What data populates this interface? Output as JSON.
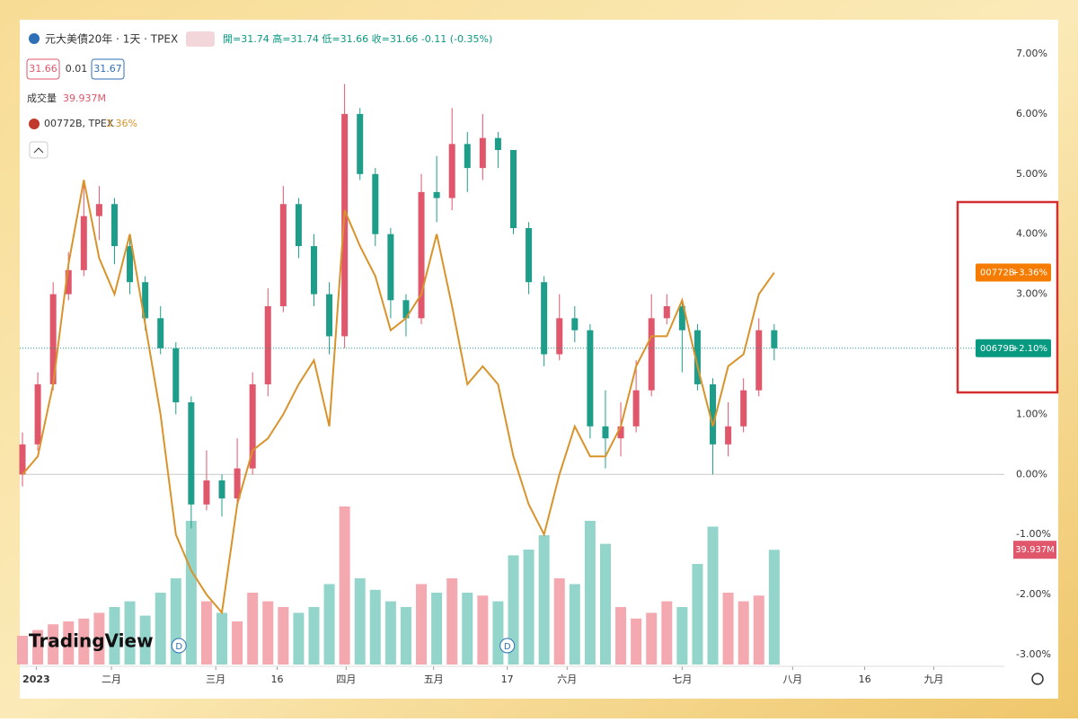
{
  "chart_data": {
    "type": "candlestick",
    "title": "元大美債20年 · 1天 · TPEX",
    "ohlc_text": "開=31.74 高=31.74 低=31.66 收=31.66 -0.11 (-0.35%)",
    "bid": "31.66",
    "spread": "0.01",
    "ask": "31.67",
    "volume_title": "成交量",
    "volume_label": "39.937M",
    "compare_name": "00772B, TPEX",
    "compare_value": "3.36%",
    "badges": [
      {
        "text": "D",
        "index": 10.2
      },
      {
        "text": "D",
        "index": 31.6
      }
    ],
    "logo": "TradingView",
    "label_line": {
      "name": "00772B",
      "value": "+3.36%",
      "color": "#f57c00"
    },
    "label_main": {
      "name": "00679B",
      "value": "+2.10%",
      "color": "#089981"
    },
    "up_color": "#e0566b",
    "down_color": "#1e9e8a",
    "up_volume_color": "#f4a9b0",
    "down_volume_color": "#94d5cb",
    "open": [
      0.0,
      0.5,
      1.5,
      3.0,
      3.4,
      4.3,
      4.5,
      3.8,
      3.2,
      2.6,
      2.1,
      1.2,
      -0.5,
      -0.1,
      -0.4,
      0.1,
      1.5,
      2.8,
      4.5,
      3.8,
      3.0,
      2.3,
      6.0,
      5.0,
      4.0,
      2.9,
      2.6,
      4.7,
      4.6,
      5.5,
      5.1,
      5.6,
      5.4,
      4.1,
      3.2,
      2.0,
      2.6,
      2.4,
      0.8,
      0.6,
      0.8,
      1.4,
      2.6,
      2.8,
      2.4,
      1.5,
      0.5,
      0.8,
      1.4,
      2.4
    ],
    "high": [
      0.7,
      1.7,
      3.2,
      3.7,
      4.9,
      4.8,
      4.6,
      4.0,
      3.3,
      2.8,
      2.2,
      1.3,
      0.4,
      0.0,
      0.6,
      1.7,
      3.1,
      4.8,
      4.6,
      4.0,
      3.2,
      6.5,
      6.1,
      5.1,
      4.1,
      3.0,
      5.0,
      5.3,
      6.1,
      5.7,
      6.0,
      5.7,
      5.4,
      4.2,
      3.3,
      3.0,
      2.8,
      2.5,
      1.4,
      1.2,
      1.9,
      3.0,
      3.0,
      2.9,
      2.5,
      1.6,
      1.2,
      1.6,
      2.6,
      2.5
    ],
    "low": [
      -0.2,
      0.4,
      1.4,
      2.9,
      3.3,
      3.9,
      3.5,
      3.0,
      2.4,
      2.0,
      1.0,
      -0.9,
      -0.6,
      -0.7,
      -0.5,
      0.0,
      1.3,
      2.7,
      3.6,
      2.8,
      2.0,
      2.1,
      4.9,
      3.8,
      2.6,
      2.3,
      2.5,
      4.2,
      4.4,
      4.7,
      4.9,
      5.1,
      4.0,
      3.0,
      1.8,
      1.9,
      2.2,
      0.6,
      0.1,
      0.3,
      0.7,
      1.3,
      2.5,
      1.7,
      1.4,
      0.0,
      0.3,
      0.7,
      1.3,
      1.9
    ],
    "close": [
      0.5,
      1.5,
      3.0,
      3.4,
      4.3,
      4.5,
      3.8,
      3.2,
      2.6,
      2.1,
      1.2,
      -0.5,
      -0.1,
      -0.4,
      0.1,
      1.5,
      2.8,
      4.5,
      3.8,
      3.0,
      2.3,
      6.0,
      5.0,
      4.0,
      2.9,
      2.6,
      4.7,
      4.6,
      5.5,
      5.1,
      5.6,
      5.4,
      4.1,
      3.2,
      2.0,
      2.6,
      2.4,
      0.8,
      0.6,
      0.8,
      1.4,
      2.6,
      2.8,
      2.4,
      1.5,
      0.5,
      0.8,
      1.4,
      2.4,
      2.1
    ],
    "volume": [
      10,
      12,
      14,
      15,
      16,
      18,
      20,
      22,
      17,
      25,
      30,
      50,
      22,
      18,
      15,
      25,
      22,
      20,
      18,
      20,
      28,
      55,
      30,
      26,
      22,
      20,
      28,
      25,
      30,
      25,
      24,
      22,
      38,
      40,
      45,
      30,
      28,
      50,
      42,
      20,
      16,
      18,
      22,
      20,
      35,
      48,
      25,
      22,
      24,
      39.937
    ],
    "volume_lim": [
      0,
      55
    ],
    "line": {
      "name": "00772B",
      "color": "#d9932a",
      "values": [
        0.0,
        0.3,
        1.5,
        3.5,
        4.9,
        3.6,
        3.0,
        4.0,
        2.5,
        1.0,
        -1.0,
        -1.6,
        -2.0,
        -2.3,
        -0.5,
        0.4,
        0.6,
        1.0,
        1.5,
        1.9,
        0.8,
        4.4,
        3.8,
        3.3,
        2.4,
        2.6,
        3.0,
        4.0,
        2.8,
        1.5,
        1.8,
        1.5,
        0.3,
        -0.5,
        -1.0,
        0.0,
        0.8,
        0.3,
        0.3,
        0.8,
        1.8,
        2.3,
        2.3,
        2.9,
        1.8,
        0.8,
        1.8,
        2.0,
        3.0,
        3.36
      ]
    },
    "xlim": [
      0,
      64
    ],
    "xticks": [
      {
        "value": 0.9,
        "label": "2023"
      },
      {
        "value": 5.8,
        "label": "二月"
      },
      {
        "value": 12.6,
        "label": "三月"
      },
      {
        "value": 16.6,
        "label": "16"
      },
      {
        "value": 21.1,
        "label": "四月"
      },
      {
        "value": 26.8,
        "label": "五月"
      },
      {
        "value": 31.6,
        "label": "17"
      },
      {
        "value": 35.5,
        "label": "六月"
      },
      {
        "value": 43.0,
        "label": "七月"
      },
      {
        "value": 50.2,
        "label": "八月"
      },
      {
        "value": 54.9,
        "label": "16"
      },
      {
        "value": 59.4,
        "label": "九月"
      }
    ],
    "ylim": [
      -3,
      7
    ],
    "yticks": [
      {
        "value": 7,
        "label": "7.00%"
      },
      {
        "value": 6,
        "label": "6.00%"
      },
      {
        "value": 5,
        "label": "5.00%"
      },
      {
        "value": 4,
        "label": "4.00%"
      },
      {
        "value": 3,
        "label": "3.00%"
      },
      {
        "value": 2,
        "label": "2.00%"
      },
      {
        "value": 1,
        "label": "1.00%"
      },
      {
        "value": 0,
        "label": "0.00%"
      },
      {
        "value": -1,
        "label": "-1.00%"
      },
      {
        "value": -2,
        "label": "-2.00%"
      },
      {
        "value": -3,
        "label": "-3.00%"
      }
    ]
  }
}
